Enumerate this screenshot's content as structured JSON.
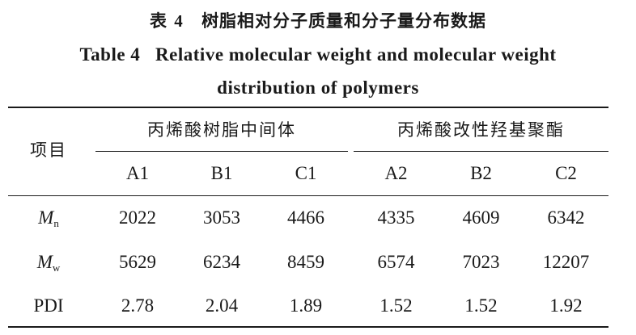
{
  "caption": {
    "cn_prefix": "表",
    "cn_number": "4",
    "cn_title": "树脂相对分子质量和分子量分布数据",
    "en_line1": "Table 4   Relative molecular weight and molecular weight",
    "en_line2": "distribution of polymers"
  },
  "table": {
    "stub_header": "项目",
    "groups": [
      {
        "label": "丙烯酸树脂中间体",
        "columns": [
          "A1",
          "B1",
          "C1"
        ]
      },
      {
        "label": "丙烯酸改性羟基聚酯",
        "columns": [
          "A2",
          "B2",
          "C2"
        ]
      }
    ],
    "rows": [
      {
        "symbol": "M",
        "subscript": "n",
        "values": [
          "2022",
          "3053",
          "4466",
          "4335",
          "4609",
          "6342"
        ]
      },
      {
        "symbol": "M",
        "subscript": "w",
        "values": [
          "5629",
          "6234",
          "8459",
          "6574",
          "7023",
          "12207"
        ]
      },
      {
        "label": "PDI",
        "values": [
          "2.78",
          "2.04",
          "1.89",
          "1.52",
          "1.52",
          "1.92"
        ]
      }
    ]
  }
}
